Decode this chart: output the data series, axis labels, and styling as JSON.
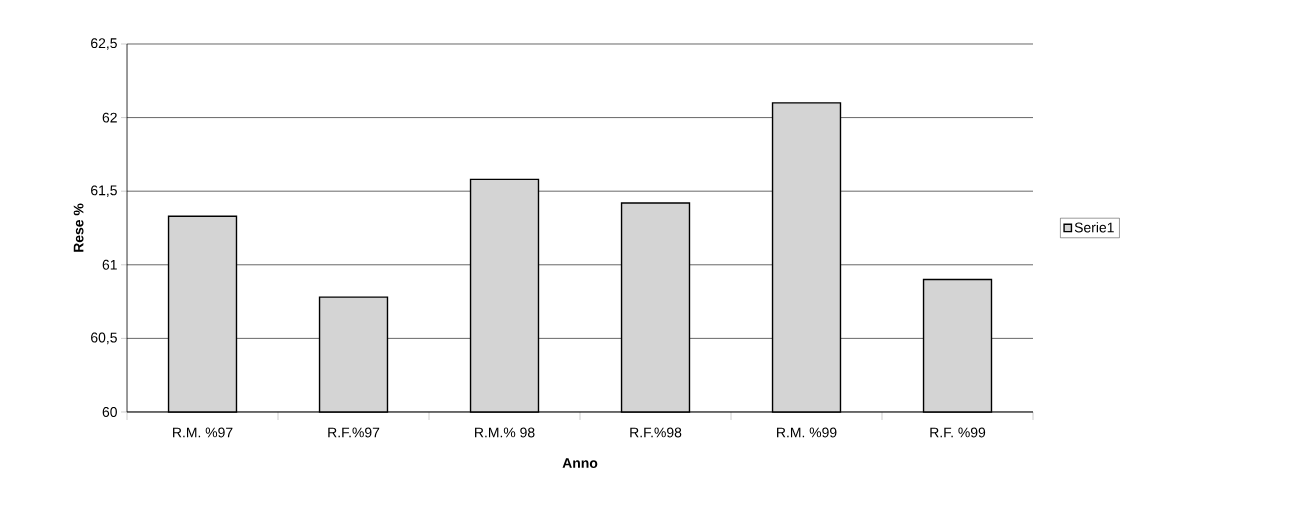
{
  "chart_data": {
    "type": "bar",
    "xlabel": "Anno",
    "ylabel": "Rese %",
    "categories": [
      "R.M. %97",
      "R.F.%97",
      "R.M.% 98",
      "R.F.%98",
      "R.M. %99",
      "R.F. %99"
    ],
    "series": [
      {
        "name": "Serie1",
        "color": "#d4d4d4",
        "values": [
          61.33,
          60.78,
          61.58,
          61.42,
          62.1,
          60.9
        ]
      }
    ],
    "ylim": [
      60,
      62.5
    ],
    "yticks": [
      60,
      {
        "value": 60.5,
        "label": "60,5"
      },
      61,
      {
        "value": 61.5,
        "label": "61,5"
      },
      62,
      {
        "value": 62.5,
        "label": "62,5"
      }
    ],
    "grid": "y",
    "legend": "right"
  }
}
